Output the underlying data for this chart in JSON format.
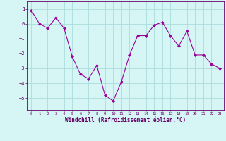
{
  "x": [
    0,
    1,
    2,
    3,
    4,
    5,
    6,
    7,
    8,
    9,
    10,
    11,
    12,
    13,
    14,
    15,
    16,
    17,
    18,
    19,
    20,
    21,
    22,
    23
  ],
  "y": [
    0.9,
    0.0,
    -0.3,
    0.4,
    -0.3,
    -2.2,
    -3.4,
    -3.7,
    -2.8,
    -4.8,
    -5.2,
    -3.9,
    -2.1,
    -0.8,
    -0.8,
    -0.1,
    0.1,
    -0.8,
    -1.5,
    -0.5,
    -2.1,
    -2.1,
    -2.7,
    -3.0
  ],
  "line_color": "#990099",
  "marker": "D",
  "marker_size": 2,
  "bg_color": "#d6f5f5",
  "grid_color": "#aadddd",
  "xlabel": "Windchill (Refroidissement éolien,°C)",
  "xlabel_color": "#660066",
  "tick_color": "#660066",
  "xlim": [
    -0.5,
    23.5
  ],
  "ylim": [
    -5.8,
    1.5
  ],
  "yticks": [
    1,
    0,
    -1,
    -2,
    -3,
    -4,
    -5
  ],
  "xticks": [
    0,
    1,
    2,
    3,
    4,
    5,
    6,
    7,
    8,
    9,
    10,
    11,
    12,
    13,
    14,
    15,
    16,
    17,
    18,
    19,
    20,
    21,
    22,
    23
  ],
  "figsize": [
    3.2,
    2.0
  ],
  "dpi": 100
}
